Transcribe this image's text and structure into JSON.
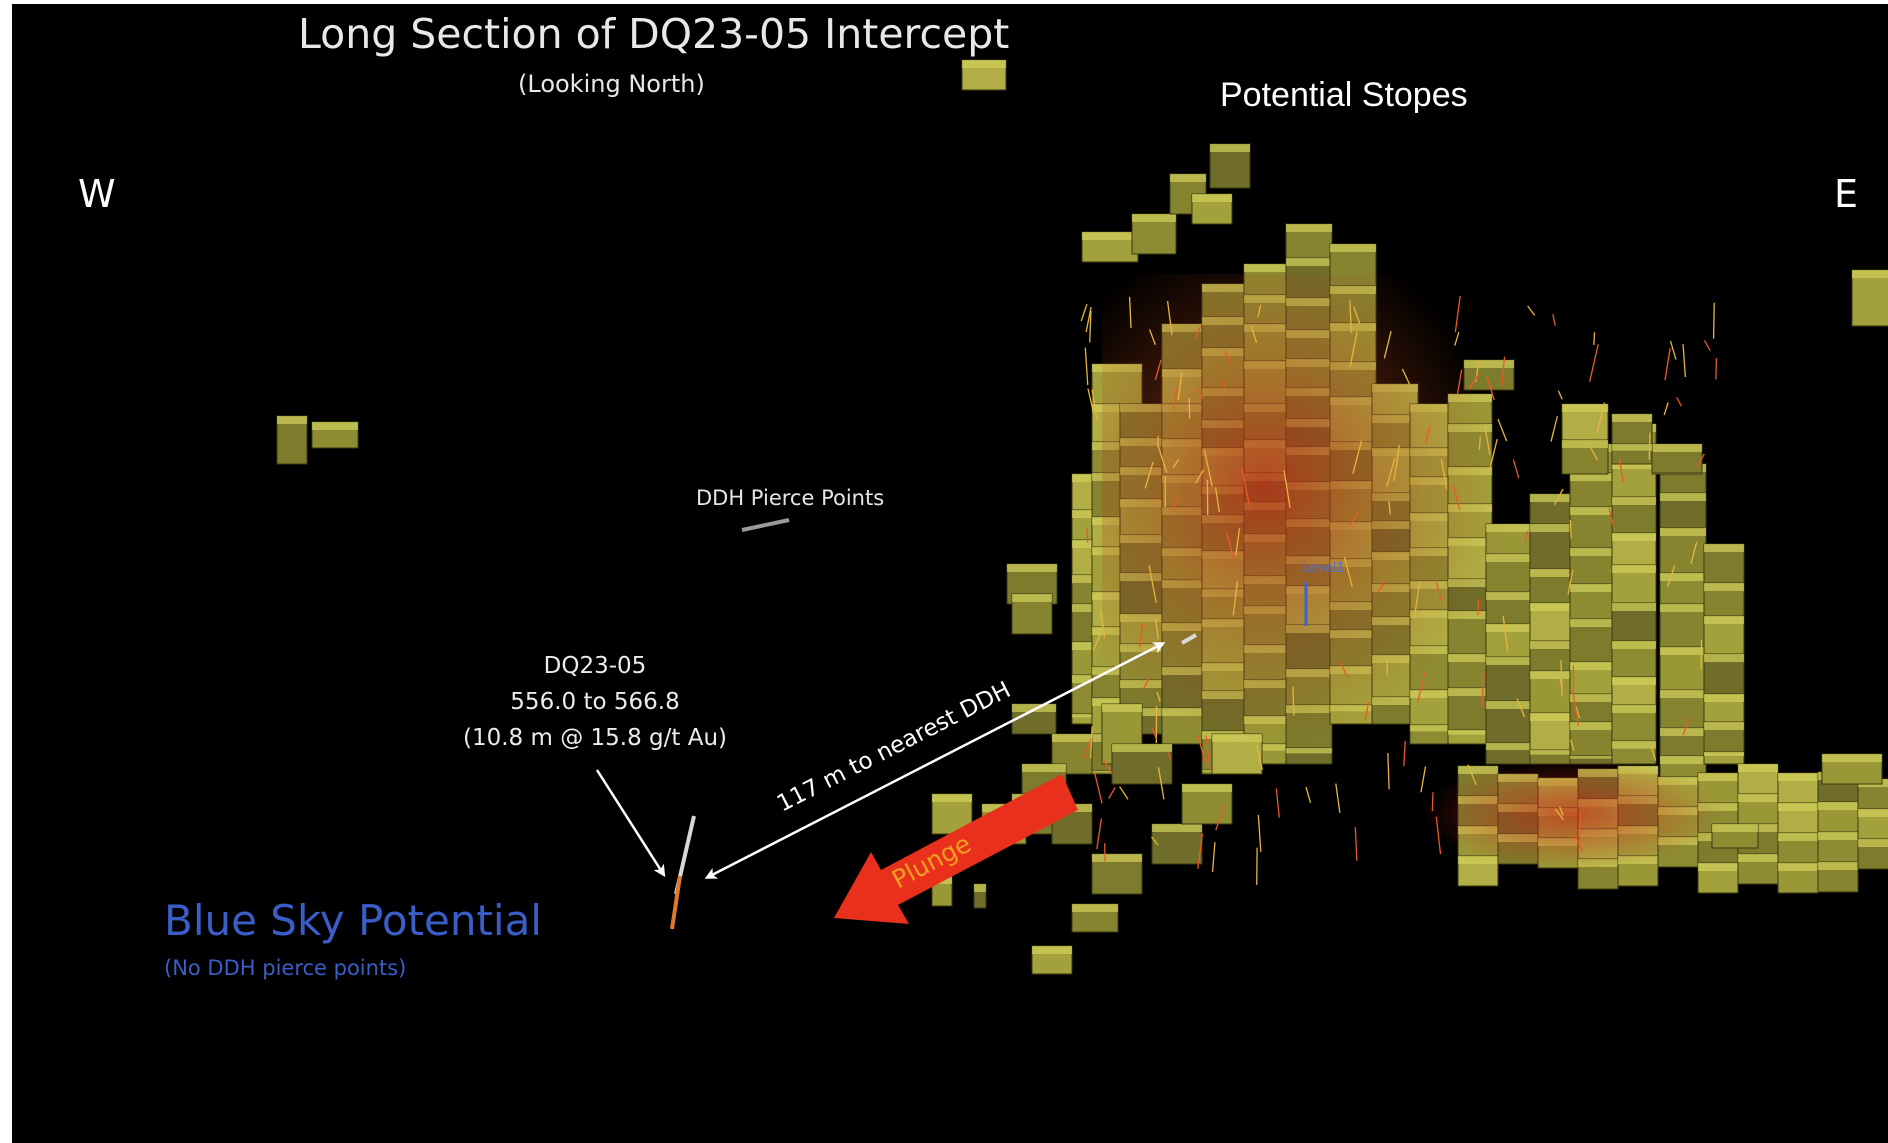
{
  "title": "Long Section of DQ23-05 Intercept",
  "subtitle": "(Looking North)",
  "potential_stopes_label": "Potential Stopes",
  "direction_west": "W",
  "direction_east": "E",
  "ddh_pierce_points_label": "DDH Pierce Points",
  "drillhole": {
    "name": "DQ23-05",
    "interval": "556.0 to 566.8",
    "grade": "(10.8 m @ 15.8 g/t Au)"
  },
  "distance_label": "117 m to nearest DDH",
  "plunge_label": "Plunge",
  "blue_sky": {
    "title": "Blue Sky Potential",
    "note": "(No DDH pierce points)"
  },
  "level_label": "Level1",
  "colors": {
    "background": "#000000",
    "stope_yellow": "#a9a83a",
    "stope_red": "#8a1e10",
    "plunge_arrow": "#e8301c",
    "plunge_text": "#f0a020",
    "blue_sky": "#3a5ec8"
  }
}
